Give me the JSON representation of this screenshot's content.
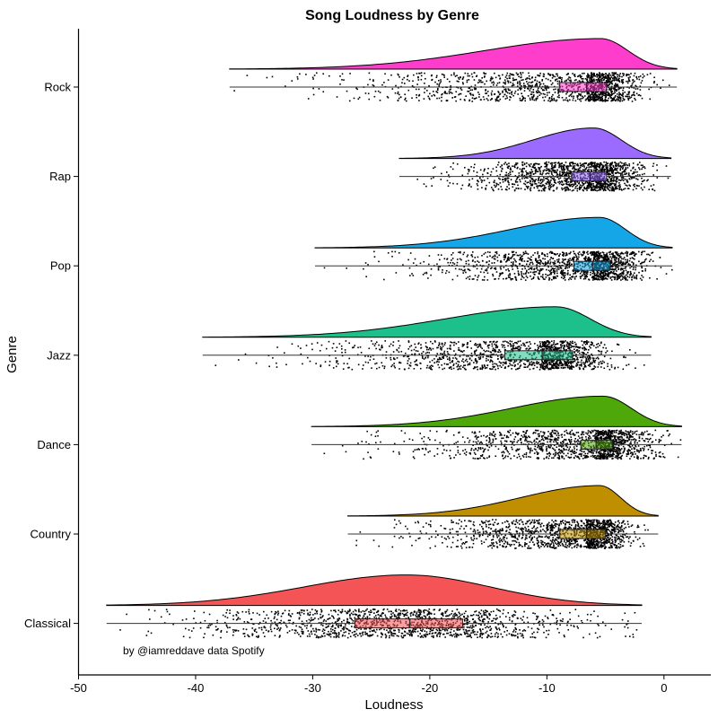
{
  "chart_data": {
    "type": "raincloud",
    "title": "Song Loudness by Genre",
    "xlabel": "Loudness",
    "ylabel": "Genre",
    "caption": "by @iamreddave data Spotify",
    "xlim": [
      -50,
      4
    ],
    "xticks": [
      -50,
      -40,
      -30,
      -20,
      -10,
      0
    ],
    "grid": false,
    "legend": "none",
    "categories": [
      "Rock",
      "Rap",
      "Pop",
      "Jazz",
      "Dance",
      "Country",
      "Classical"
    ],
    "series": [
      {
        "name": "Rock",
        "color": "#FF3DCC",
        "min": -37.1,
        "q1": -8.9,
        "median": -6.6,
        "q3": -4.9,
        "max": 1.1,
        "mode": -5.4,
        "sd": 2.6,
        "n": 1400
      },
      {
        "name": "Rap",
        "color": "#9B6BFF",
        "min": -22.6,
        "q1": -7.9,
        "median": -6.3,
        "q3": -4.9,
        "max": 0.6,
        "mode": -6.0,
        "sd": 2.3,
        "n": 1400
      },
      {
        "name": "Pop",
        "color": "#15A6E8",
        "min": -29.8,
        "q1": -7.7,
        "median": -6.1,
        "q3": -4.6,
        "max": 0.7,
        "mode": -5.5,
        "sd": 2.4,
        "n": 1400
      },
      {
        "name": "Jazz",
        "color": "#1DBF8A",
        "min": -39.4,
        "q1": -13.6,
        "median": -10.4,
        "q3": -7.8,
        "max": -1.1,
        "mode": -9.2,
        "sd": 4.8,
        "n": 1400
      },
      {
        "name": "Dance",
        "color": "#4FA80A",
        "min": -30.1,
        "q1": -7.1,
        "median": -5.8,
        "q3": -4.4,
        "max": 1.5,
        "mode": -5.2,
        "sd": 2.0,
        "n": 1400
      },
      {
        "name": "Country",
        "color": "#BF8F00",
        "min": -27.0,
        "q1": -8.9,
        "median": -6.6,
        "q3": -5.0,
        "max": -0.5,
        "mode": -5.5,
        "sd": 2.5,
        "n": 1400
      },
      {
        "name": "Classical",
        "color": "#F45455",
        "min": -47.6,
        "q1": -26.4,
        "median": -21.7,
        "q3": -17.2,
        "max": -1.9,
        "mode": -22.0,
        "sd": 7.0,
        "n": 1400
      }
    ]
  }
}
